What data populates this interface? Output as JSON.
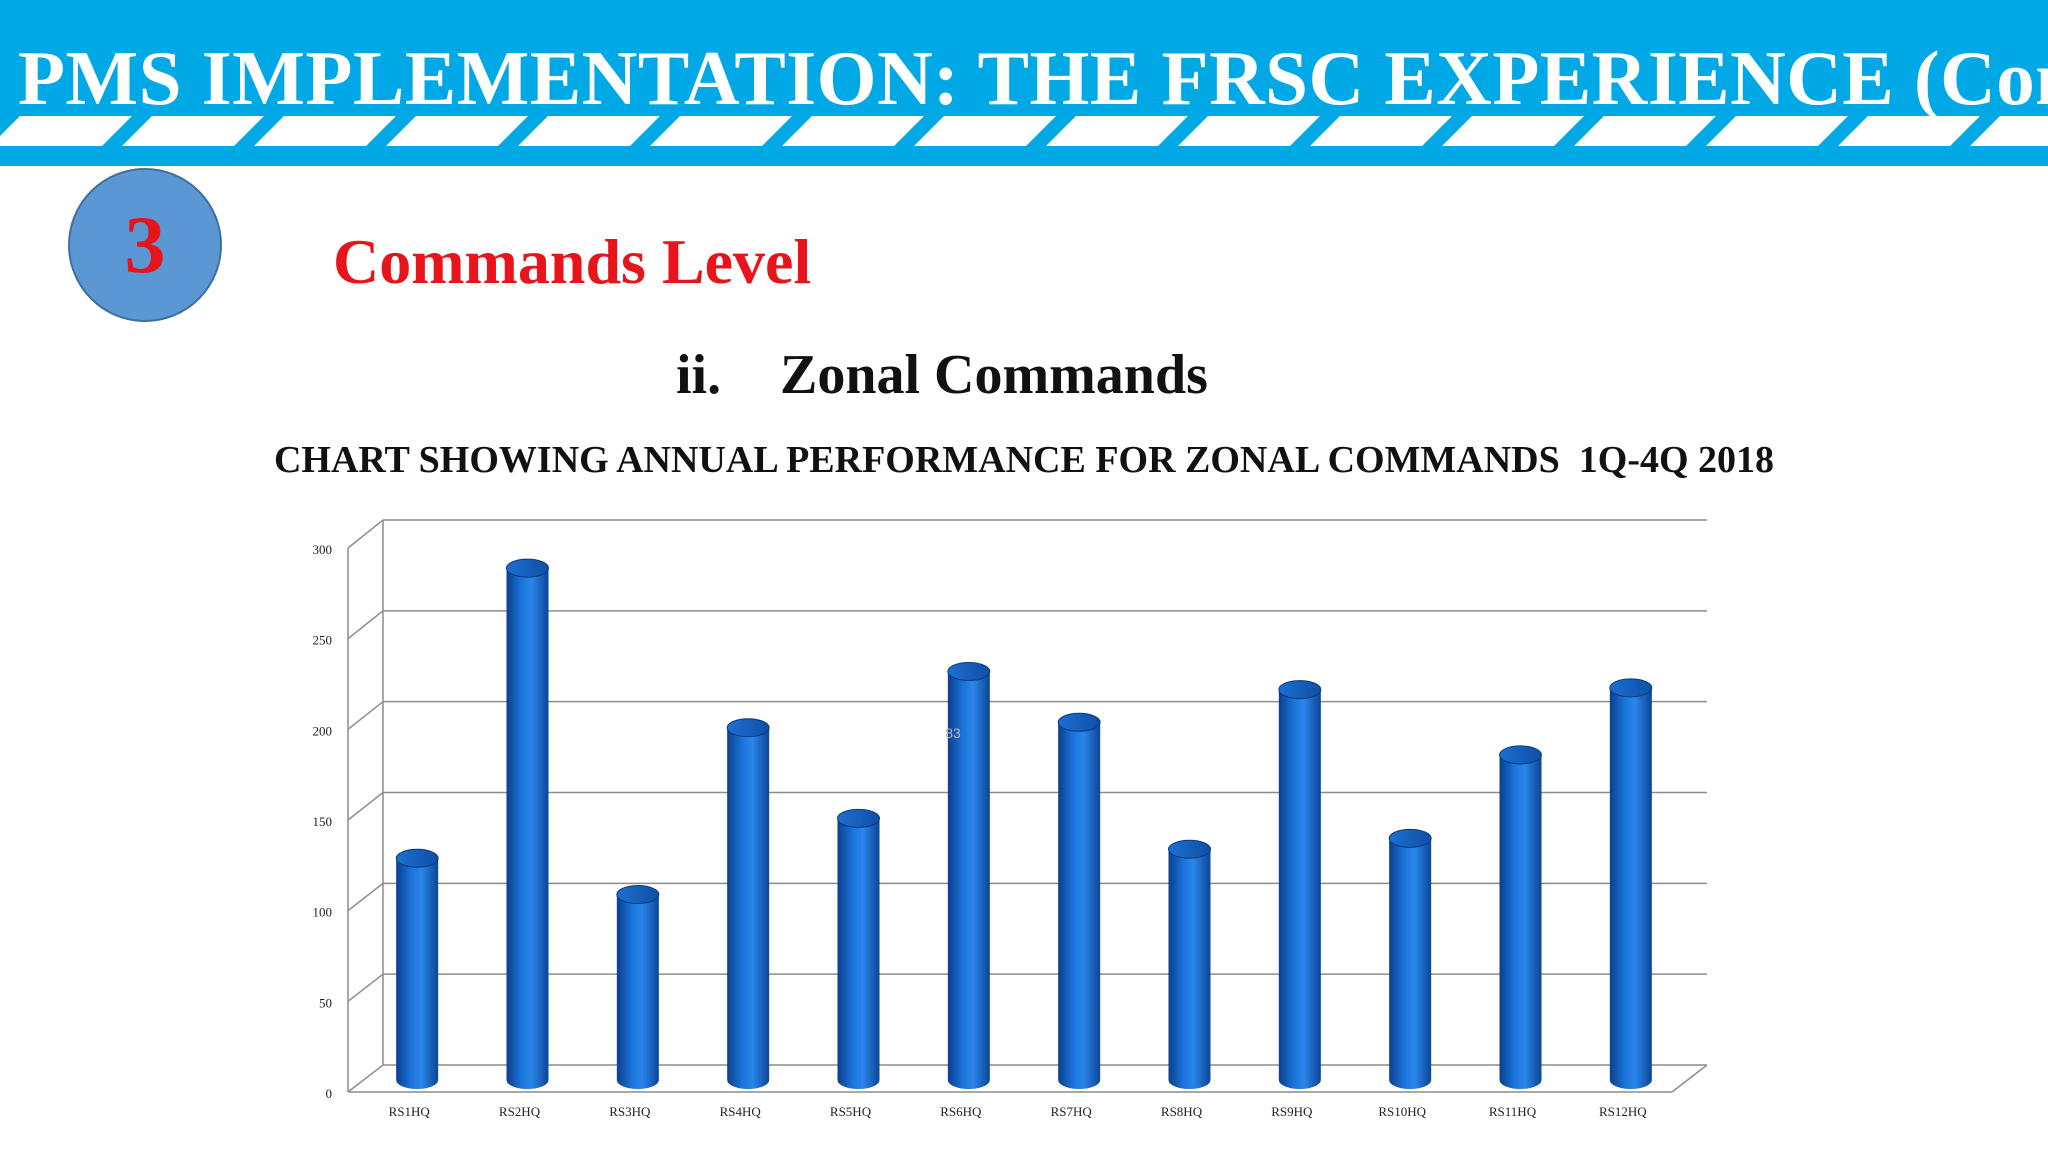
{
  "header": {
    "title": "PMS IMPLEMENTATION: THE FRSC EXPERIENCE (Cont.)"
  },
  "section": {
    "number": "3",
    "title": "Commands Level"
  },
  "subsection": {
    "number": "ii.",
    "title": "Zonal Commands"
  },
  "colors": {
    "banner": "#00a9e6",
    "accent_red": "#e8141b",
    "bar": "#1565c8",
    "badge": "#5b98d3"
  },
  "chart_data": {
    "type": "bar",
    "title": "CHART SHOWING ANNUAL PERFORMANCE FOR ZONAL COMMANDS  1Q-4Q 2018",
    "categories": [
      "RS1HQ",
      "RS2HQ",
      "RS3HQ",
      "RS4HQ",
      "RS5HQ",
      "RS6HQ",
      "RS7HQ",
      "RS8HQ",
      "RS9HQ",
      "RS10HQ",
      "RS11HQ",
      "RS12HQ"
    ],
    "values": [
      130,
      290,
      110,
      202,
      152,
      233,
      205,
      135,
      223,
      141,
      187,
      224
    ],
    "ylim": [
      0,
      300
    ],
    "yticks": [
      0,
      50,
      100,
      150,
      200,
      250,
      300
    ],
    "grid": true,
    "legend": "none",
    "annotation": "83",
    "xlabel": "",
    "ylabel": ""
  }
}
